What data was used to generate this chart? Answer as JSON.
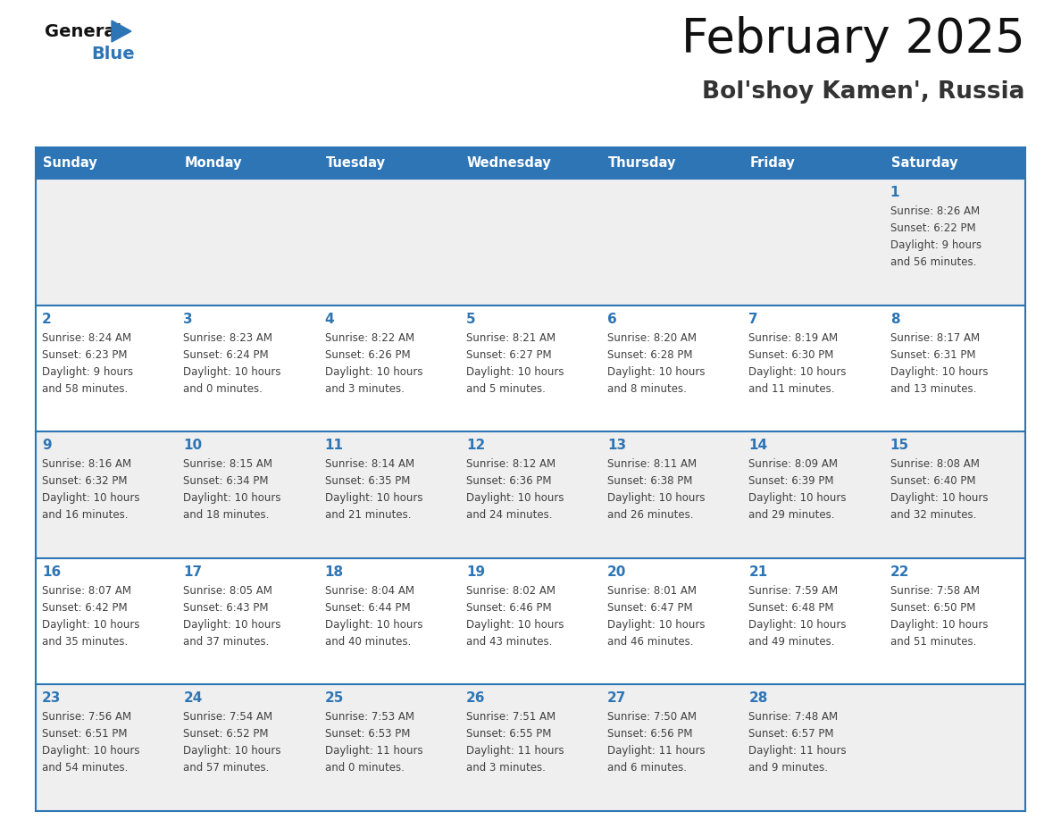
{
  "title": "February 2025",
  "subtitle": "Bol'shoy Kamen', Russia",
  "header_bg": "#2E75B6",
  "header_text_color": "#FFFFFF",
  "cell_bg_light": "#EFEFEF",
  "cell_bg_white": "#FFFFFF",
  "day_number_color": "#2E75B6",
  "text_color": "#404040",
  "border_color": "#2E75B6",
  "days_of_week": [
    "Sunday",
    "Monday",
    "Tuesday",
    "Wednesday",
    "Thursday",
    "Friday",
    "Saturday"
  ],
  "logo_general_color": "#111111",
  "logo_blue_color": "#2E75B6",
  "logo_triangle_color": "#2E75B6",
  "calendar_data": [
    [
      null,
      null,
      null,
      null,
      null,
      null,
      {
        "day": "1",
        "sunrise": "8:26 AM",
        "sunset": "6:22 PM",
        "daylight_h": "9 hours",
        "daylight_m": "and 56 minutes."
      }
    ],
    [
      {
        "day": "2",
        "sunrise": "8:24 AM",
        "sunset": "6:23 PM",
        "daylight_h": "9 hours",
        "daylight_m": "and 58 minutes."
      },
      {
        "day": "3",
        "sunrise": "8:23 AM",
        "sunset": "6:24 PM",
        "daylight_h": "10 hours",
        "daylight_m": "and 0 minutes."
      },
      {
        "day": "4",
        "sunrise": "8:22 AM",
        "sunset": "6:26 PM",
        "daylight_h": "10 hours",
        "daylight_m": "and 3 minutes."
      },
      {
        "day": "5",
        "sunrise": "8:21 AM",
        "sunset": "6:27 PM",
        "daylight_h": "10 hours",
        "daylight_m": "and 5 minutes."
      },
      {
        "day": "6",
        "sunrise": "8:20 AM",
        "sunset": "6:28 PM",
        "daylight_h": "10 hours",
        "daylight_m": "and 8 minutes."
      },
      {
        "day": "7",
        "sunrise": "8:19 AM",
        "sunset": "6:30 PM",
        "daylight_h": "10 hours",
        "daylight_m": "and 11 minutes."
      },
      {
        "day": "8",
        "sunrise": "8:17 AM",
        "sunset": "6:31 PM",
        "daylight_h": "10 hours",
        "daylight_m": "and 13 minutes."
      }
    ],
    [
      {
        "day": "9",
        "sunrise": "8:16 AM",
        "sunset": "6:32 PM",
        "daylight_h": "10 hours",
        "daylight_m": "and 16 minutes."
      },
      {
        "day": "10",
        "sunrise": "8:15 AM",
        "sunset": "6:34 PM",
        "daylight_h": "10 hours",
        "daylight_m": "and 18 minutes."
      },
      {
        "day": "11",
        "sunrise": "8:14 AM",
        "sunset": "6:35 PM",
        "daylight_h": "10 hours",
        "daylight_m": "and 21 minutes."
      },
      {
        "day": "12",
        "sunrise": "8:12 AM",
        "sunset": "6:36 PM",
        "daylight_h": "10 hours",
        "daylight_m": "and 24 minutes."
      },
      {
        "day": "13",
        "sunrise": "8:11 AM",
        "sunset": "6:38 PM",
        "daylight_h": "10 hours",
        "daylight_m": "and 26 minutes."
      },
      {
        "day": "14",
        "sunrise": "8:09 AM",
        "sunset": "6:39 PM",
        "daylight_h": "10 hours",
        "daylight_m": "and 29 minutes."
      },
      {
        "day": "15",
        "sunrise": "8:08 AM",
        "sunset": "6:40 PM",
        "daylight_h": "10 hours",
        "daylight_m": "and 32 minutes."
      }
    ],
    [
      {
        "day": "16",
        "sunrise": "8:07 AM",
        "sunset": "6:42 PM",
        "daylight_h": "10 hours",
        "daylight_m": "and 35 minutes."
      },
      {
        "day": "17",
        "sunrise": "8:05 AM",
        "sunset": "6:43 PM",
        "daylight_h": "10 hours",
        "daylight_m": "and 37 minutes."
      },
      {
        "day": "18",
        "sunrise": "8:04 AM",
        "sunset": "6:44 PM",
        "daylight_h": "10 hours",
        "daylight_m": "and 40 minutes."
      },
      {
        "day": "19",
        "sunrise": "8:02 AM",
        "sunset": "6:46 PM",
        "daylight_h": "10 hours",
        "daylight_m": "and 43 minutes."
      },
      {
        "day": "20",
        "sunrise": "8:01 AM",
        "sunset": "6:47 PM",
        "daylight_h": "10 hours",
        "daylight_m": "and 46 minutes."
      },
      {
        "day": "21",
        "sunrise": "7:59 AM",
        "sunset": "6:48 PM",
        "daylight_h": "10 hours",
        "daylight_m": "and 49 minutes."
      },
      {
        "day": "22",
        "sunrise": "7:58 AM",
        "sunset": "6:50 PM",
        "daylight_h": "10 hours",
        "daylight_m": "and 51 minutes."
      }
    ],
    [
      {
        "day": "23",
        "sunrise": "7:56 AM",
        "sunset": "6:51 PM",
        "daylight_h": "10 hours",
        "daylight_m": "and 54 minutes."
      },
      {
        "day": "24",
        "sunrise": "7:54 AM",
        "sunset": "6:52 PM",
        "daylight_h": "10 hours",
        "daylight_m": "and 57 minutes."
      },
      {
        "day": "25",
        "sunrise": "7:53 AM",
        "sunset": "6:53 PM",
        "daylight_h": "11 hours",
        "daylight_m": "and 0 minutes."
      },
      {
        "day": "26",
        "sunrise": "7:51 AM",
        "sunset": "6:55 PM",
        "daylight_h": "11 hours",
        "daylight_m": "and 3 minutes."
      },
      {
        "day": "27",
        "sunrise": "7:50 AM",
        "sunset": "6:56 PM",
        "daylight_h": "11 hours",
        "daylight_m": "and 6 minutes."
      },
      {
        "day": "28",
        "sunrise": "7:48 AM",
        "sunset": "6:57 PM",
        "daylight_h": "11 hours",
        "daylight_m": "and 9 minutes."
      },
      null
    ]
  ]
}
